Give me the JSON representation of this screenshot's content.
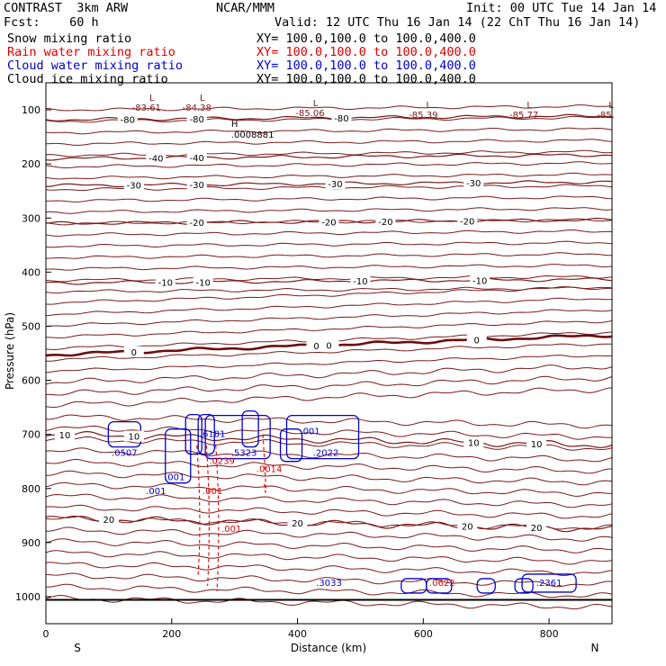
{
  "header": {
    "model": "CONTRAST  3km ARW",
    "org": "NCAR/MMM",
    "init": "Init: 00 UTC Tue 14 Jan 14",
    "fcst": "Fcst:    60 h",
    "valid": "Valid: 12 UTC Thu 16 Jan 14 (22 ChT Thu 16 Jan 14)",
    "fields": [
      {
        "name": "Snow mixing ratio",
        "xy": "XY= 100.0,100.0 to 100.0,400.0",
        "color": "#000000"
      },
      {
        "name": "Rain water mixing ratio",
        "xy": "XY= 100.0,100.0 to 100.0,400.0",
        "color": "#e00000"
      },
      {
        "name": "Cloud water mixing ratio",
        "xy": "XY= 100.0,100.0 to 100.0,400.0",
        "color": "#0000cc"
      },
      {
        "name": "Cloud ice mixing ratio",
        "xy": "XY= 100.0,100.0 to 100.0,400.0",
        "color": "#000000"
      }
    ]
  },
  "chart_data": {
    "type": "cross-section contour",
    "xlabel": "Distance (km)",
    "ylabel": "Pressure (hPa)",
    "xlim": [
      0,
      900
    ],
    "ylim": [
      1050,
      50
    ],
    "x_ticks": [
      "0",
      "200",
      "400",
      "600",
      "800"
    ],
    "y_ticks": [
      "100",
      "200",
      "300",
      "400",
      "500",
      "600",
      "700",
      "800",
      "900",
      "1000"
    ],
    "x_end_labels": {
      "left": "S",
      "right": "N"
    },
    "temperature_contours": {
      "color": "#7a1a1a",
      "zero_color": "#6b0d0d",
      "levels": [
        {
          "p": 118,
          "label": "-80",
          "at": [
            130,
            240,
            470
          ]
        },
        {
          "p": 190,
          "label": "-40",
          "at": [
            175,
            240
          ]
        },
        {
          "p": 240,
          "label": "-30",
          "at": [
            140,
            240,
            460,
            680
          ]
        },
        {
          "p": 310,
          "label": "-20",
          "at": [
            240,
            450,
            540,
            670
          ]
        },
        {
          "p": 420,
          "label": "-10",
          "at": [
            190,
            250,
            500,
            690
          ]
        },
        {
          "p": 553,
          "label": "0",
          "at": [
            140,
            430,
            450,
            685
          ],
          "bold": true
        },
        {
          "p": 700,
          "label": "10",
          "at": [
            30,
            140,
            680,
            780
          ]
        },
        {
          "p": 855,
          "label": "20",
          "at": [
            100,
            400,
            670,
            780
          ]
        }
      ],
      "upper_extrema": [
        {
          "x": 160,
          "p": 95,
          "label": "-83.61"
        },
        {
          "x": 240,
          "p": 95,
          "label": "-84.38"
        },
        {
          "x": 420,
          "p": 105,
          "label": "-85.06"
        },
        {
          "x": 600,
          "p": 108,
          "label": "-85.39"
        },
        {
          "x": 760,
          "p": 108,
          "label": "-85.77"
        },
        {
          "x": 890,
          "p": 108,
          "label": "-85."
        }
      ]
    },
    "cloud_water": {
      "color": "#0000cc",
      "max_labels": [
        {
          "x": 125,
          "p": 740,
          "label": ".0507"
        },
        {
          "x": 265,
          "p": 705,
          "label": ".6181"
        },
        {
          "x": 315,
          "p": 740,
          "label": ".5323"
        },
        {
          "x": 445,
          "p": 740,
          "label": ".2022"
        },
        {
          "x": 420,
          "p": 700,
          "label": ".001"
        },
        {
          "x": 205,
          "p": 785,
          "label": ".001"
        },
        {
          "x": 175,
          "p": 810,
          "label": ".001"
        },
        {
          "x": 450,
          "p": 980,
          "label": ".3033"
        },
        {
          "x": 800,
          "p": 980,
          "label": ".2361"
        }
      ]
    },
    "rain_water": {
      "color": "#e00000",
      "max_labels": [
        {
          "x": 280,
          "p": 755,
          "label": ".0239"
        },
        {
          "x": 355,
          "p": 770,
          "label": ".0014"
        },
        {
          "x": 265,
          "p": 810,
          "label": ".001"
        },
        {
          "x": 295,
          "p": 880,
          "label": ".001"
        },
        {
          "x": 630,
          "p": 980,
          "label": ".0622"
        }
      ]
    },
    "ice_max": {
      "x": 300,
      "p": 145,
      "label": ".0008881"
    }
  }
}
